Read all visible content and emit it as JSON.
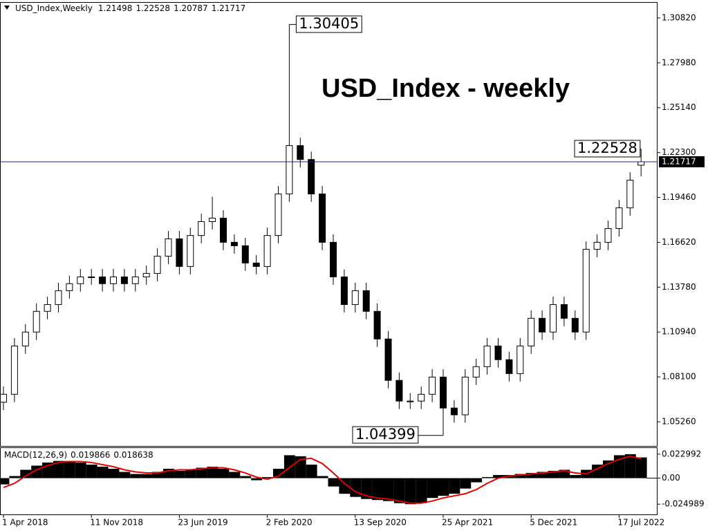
{
  "chart_data": {
    "type": "candlestick",
    "title": "USD_Index - weekly",
    "symbol": "USD_Index,Weekly",
    "categories": [
      "1 Apr 2018",
      null,
      null,
      null,
      null,
      null,
      null,
      null,
      "11 Nov 2018",
      null,
      null,
      null,
      null,
      null,
      null,
      null,
      "23 Jun 2019",
      null,
      null,
      null,
      null,
      null,
      null,
      null,
      "2 Feb 2020",
      null,
      null,
      null,
      null,
      null,
      null,
      null,
      "13 Sep 2020",
      null,
      null,
      null,
      null,
      null,
      null,
      null,
      "25 Apr 2021",
      null,
      null,
      null,
      null,
      null,
      null,
      null,
      "5 Dec 2021",
      null,
      null,
      null,
      null,
      null,
      null,
      null,
      "17 Jul 2022",
      null,
      null
    ],
    "open": [
      1.065,
      1.07,
      1.1006,
      1.1094,
      1.1225,
      1.1268,
      1.1356,
      1.14,
      1.1443,
      1.1443,
      1.14,
      1.1443,
      1.14,
      1.1443,
      1.1465,
      1.1574,
      1.1684,
      1.1509,
      1.1705,
      1.1793,
      1.1815,
      1.1662,
      1.164,
      1.1531,
      1.1509,
      1.1705,
      1.1968,
      1.2274,
      1.2186,
      1.1968,
      1.1662,
      1.1443,
      1.1268,
      1.1356,
      1.1225,
      1.105,
      1.0788,
      1.0657,
      1.0657,
      1.07,
      1.0809,
      1.0613,
      1.057,
      1.0809,
      1.0875,
      1.1006,
      1.0919,
      1.0831,
      1.1006,
      1.1181,
      1.1094,
      1.1268,
      1.1181,
      1.1094,
      1.1618,
      1.1662,
      1.1749,
      1.188,
      1.21498
    ],
    "high": [
      1.075,
      1.1056,
      1.1144,
      1.1275,
      1.1318,
      1.1406,
      1.145,
      1.1493,
      1.1493,
      1.1493,
      1.1493,
      1.1493,
      1.1493,
      1.1515,
      1.1624,
      1.1734,
      1.1734,
      1.1755,
      1.1843,
      1.195,
      1.1865,
      1.1712,
      1.169,
      1.1581,
      1.1755,
      1.2018,
      1.30405,
      1.2324,
      1.2236,
      1.2018,
      1.1712,
      1.149,
      1.1406,
      1.1406,
      1.1275,
      1.11,
      1.0838,
      1.0707,
      1.075,
      1.0859,
      1.0859,
      1.0663,
      1.0859,
      1.0925,
      1.1056,
      1.1056,
      1.0969,
      1.1056,
      1.1231,
      1.1231,
      1.1318,
      1.1318,
      1.1231,
      1.1668,
      1.1712,
      1.1799,
      1.193,
      1.2105,
      1.22528
    ],
    "low": [
      1.06,
      1.065,
      1.0956,
      1.1044,
      1.1175,
      1.1218,
      1.1306,
      1.135,
      1.1393,
      1.135,
      1.135,
      1.135,
      1.135,
      1.1393,
      1.1415,
      1.1524,
      1.1459,
      1.1459,
      1.1655,
      1.1743,
      1.1612,
      1.159,
      1.1481,
      1.1459,
      1.1459,
      1.1655,
      1.1918,
      1.2136,
      1.1918,
      1.1612,
      1.1393,
      1.1218,
      1.1218,
      1.1175,
      1.1,
      1.0738,
      1.0607,
      1.0607,
      1.0607,
      1.065,
      1.04399,
      1.052,
      1.052,
      1.0759,
      1.0825,
      1.0869,
      1.0781,
      1.0781,
      1.0956,
      1.1044,
      1.1044,
      1.1131,
      1.1044,
      1.1044,
      1.1568,
      1.1612,
      1.1699,
      1.183,
      1.20787
    ],
    "close": [
      1.07,
      1.1006,
      1.1094,
      1.1225,
      1.1268,
      1.1356,
      1.14,
      1.1443,
      1.1443,
      1.14,
      1.1443,
      1.14,
      1.1443,
      1.1465,
      1.1574,
      1.1684,
      1.1509,
      1.1705,
      1.1793,
      1.1815,
      1.1662,
      1.164,
      1.1531,
      1.1509,
      1.1705,
      1.1968,
      1.2274,
      1.2186,
      1.1968,
      1.1662,
      1.1443,
      1.1268,
      1.1356,
      1.1225,
      1.105,
      1.0788,
      1.0657,
      1.0657,
      1.07,
      1.0809,
      1.0613,
      1.057,
      1.0809,
      1.0875,
      1.1006,
      1.0919,
      1.0831,
      1.1006,
      1.1181,
      1.1094,
      1.1268,
      1.1181,
      1.1094,
      1.1618,
      1.1662,
      1.1749,
      1.188,
      1.2055,
      1.21717
    ],
    "ylim": [
      1.0373,
      1.3178
    ],
    "yticks": [
      {
        "value": 1.3082,
        "label": "1.30820"
      },
      {
        "value": 1.2798,
        "label": "1.27980"
      },
      {
        "value": 1.2514,
        "label": "1.25140"
      },
      {
        "value": 1.223,
        "label": "1.22300"
      },
      {
        "value": 1.1946,
        "label": "1.19460"
      },
      {
        "value": 1.1662,
        "label": "1.16620"
      },
      {
        "value": 1.1378,
        "label": "1.13780"
      },
      {
        "value": 1.1094,
        "label": "1.10940"
      },
      {
        "value": 1.081,
        "label": "1.08100"
      },
      {
        "value": 1.0526,
        "label": "1.05260"
      }
    ],
    "price_line_color": "#1a237e",
    "macd": {
      "label": "MACD(12,26,9)",
      "histogram": [
        -0.006,
        0.002,
        0.008,
        0.012,
        0.015,
        0.0165,
        0.0165,
        0.015,
        0.013,
        0.011,
        0.009,
        0.006,
        0.004,
        0.004,
        0.006,
        0.009,
        0.007,
        0.008,
        0.01,
        0.011,
        0.009,
        0.006,
        0.002,
        -0.002,
        0.001,
        0.009,
        0.022,
        0.021,
        0.013,
        0.002,
        -0.008,
        -0.015,
        -0.018,
        -0.02,
        -0.021,
        -0.022,
        -0.024,
        -0.025,
        -0.024,
        -0.019,
        -0.017,
        -0.015,
        -0.01,
        -0.004,
        0.001,
        0.003,
        0.003,
        0.004,
        0.005,
        0.006,
        0.007,
        0.008,
        0.003,
        0.008,
        0.013,
        0.017,
        0.022,
        0.023,
        0.019866
      ],
      "signal": [
        -0.009,
        -0.005,
        0.002,
        0.008,
        0.012,
        0.015,
        0.016,
        0.016,
        0.015,
        0.013,
        0.011,
        0.008,
        0.006,
        0.005,
        0.005,
        0.007,
        0.008,
        0.008,
        0.009,
        0.01,
        0.01,
        0.008,
        0.005,
        0.001,
        -0.001,
        0.002,
        0.01,
        0.018,
        0.019,
        0.014,
        0.005,
        -0.005,
        -0.013,
        -0.017,
        -0.019,
        -0.02,
        -0.022,
        -0.024,
        -0.024,
        -0.022,
        -0.019,
        -0.017,
        -0.015,
        -0.011,
        -0.005,
        0.0,
        0.002,
        0.003,
        0.004,
        0.005,
        0.006,
        0.007,
        0.005,
        0.004,
        0.009,
        0.014,
        0.018,
        0.021,
        0.018638
      ],
      "signal_color": "#e00000",
      "ylim": [
        -0.0348,
        0.0289
      ],
      "yticks": [
        0.022992,
        {
          "value": 0,
          "label": "0.00"
        },
        -0.024989
      ]
    }
  }
}
